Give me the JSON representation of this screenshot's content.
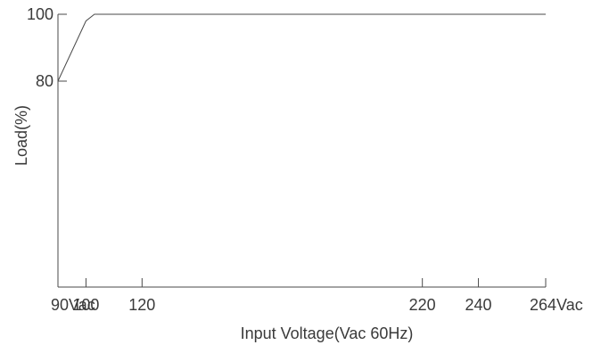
{
  "chart_data": {
    "type": "line",
    "title": "",
    "xlabel": "Input Voltage(Vac 60Hz)",
    "ylabel": "Load(%)",
    "xlim": [
      90,
      264
    ],
    "ylim": [
      40,
      100
    ],
    "grid": false,
    "legend": "none",
    "x_ticks": [
      {
        "value": 90,
        "label": "90Vac"
      },
      {
        "value": 100,
        "label": "100"
      },
      {
        "value": 120,
        "label": "120"
      },
      {
        "value": 220,
        "label": "220"
      },
      {
        "value": 240,
        "label": "240"
      },
      {
        "value": 264,
        "label": "264Vac"
      }
    ],
    "y_ticks": [
      {
        "value": 100,
        "label": "100"
      },
      {
        "value": 80,
        "label": "80"
      }
    ],
    "series": [
      {
        "x": [
          90,
          100,
          103,
          264
        ],
        "y": [
          80,
          98,
          100,
          100
        ],
        "color": "#4a4a4a"
      }
    ]
  }
}
